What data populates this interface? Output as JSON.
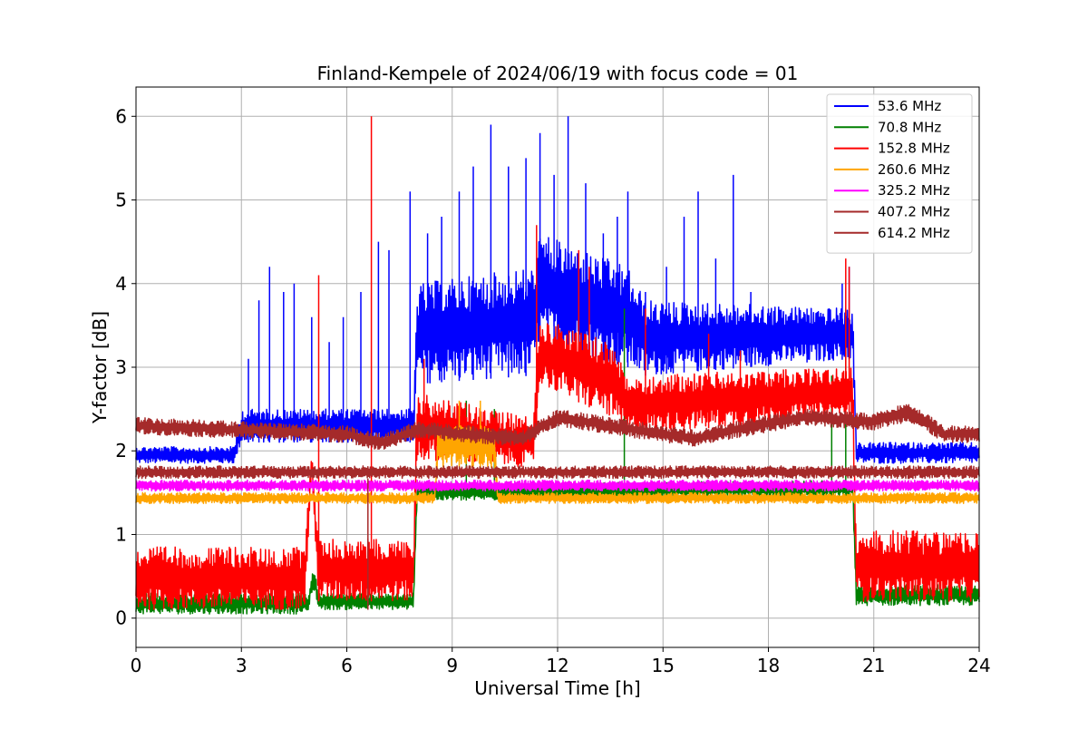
{
  "chart_data": {
    "type": "line",
    "title": "Finland-Kempele of 2024/06/19 with focus code = 01",
    "xlabel": "Universal Time [h]",
    "ylabel": "Y-factor [dB]",
    "xlim": [
      0,
      24
    ],
    "ylim": [
      -0.35,
      6.35
    ],
    "x_ticks": [
      0,
      3,
      6,
      9,
      12,
      15,
      18,
      21,
      24
    ],
    "x_tick_labels": [
      "0",
      "3",
      "6",
      "9",
      "12",
      "15",
      "18",
      "21",
      "24"
    ],
    "y_ticks": [
      0,
      1,
      2,
      3,
      4,
      5,
      6
    ],
    "y_tick_labels": [
      "0",
      "1",
      "2",
      "3",
      "4",
      "5",
      "6"
    ],
    "grid": true,
    "legend_position": "top-right",
    "series": [
      {
        "name": " 53.6 MHz",
        "color": "#0000ff",
        "profile_x": [
          0,
          2.8,
          3.0,
          7.9,
          8.0,
          11.3,
          11.5,
          14.0,
          14.5,
          20.4,
          20.5,
          24
        ],
        "band_low": [
          1.85,
          1.85,
          2.1,
          2.1,
          2.8,
          2.9,
          3.3,
          3.0,
          2.9,
          3.1,
          1.85,
          1.85
        ],
        "band_high": [
          2.05,
          2.05,
          2.5,
          2.5,
          4.0,
          4.2,
          4.6,
          4.2,
          3.8,
          3.7,
          2.1,
          2.1
        ],
        "peaks": [
          [
            3.2,
            3.1
          ],
          [
            3.5,
            3.8
          ],
          [
            3.8,
            4.2
          ],
          [
            4.2,
            3.9
          ],
          [
            4.5,
            4.0
          ],
          [
            5.0,
            3.6
          ],
          [
            5.5,
            3.3
          ],
          [
            5.9,
            3.6
          ],
          [
            6.4,
            3.9
          ],
          [
            6.9,
            4.5
          ],
          [
            7.2,
            4.4
          ],
          [
            7.8,
            5.1
          ],
          [
            8.3,
            4.6
          ],
          [
            8.7,
            4.8
          ],
          [
            9.2,
            5.1
          ],
          [
            9.6,
            5.4
          ],
          [
            10.1,
            5.9
          ],
          [
            10.6,
            5.4
          ],
          [
            11.1,
            5.5
          ],
          [
            11.5,
            5.8
          ],
          [
            11.9,
            5.3
          ],
          [
            12.3,
            6.0
          ],
          [
            12.8,
            5.2
          ],
          [
            13.3,
            4.6
          ],
          [
            13.7,
            4.8
          ],
          [
            14.0,
            5.1
          ],
          [
            14.5,
            3.9
          ],
          [
            15.1,
            4.2
          ],
          [
            15.6,
            4.8
          ],
          [
            16.0,
            5.1
          ],
          [
            16.5,
            4.3
          ],
          [
            17.0,
            5.3
          ],
          [
            17.5,
            3.9
          ],
          [
            18.0,
            3.7
          ],
          [
            19.1,
            3.7
          ],
          [
            20.1,
            4.0
          ],
          [
            20.3,
            4.2
          ]
        ]
      },
      {
        "name": " 70.8 MHz",
        "color": "#008000",
        "profile_x": [
          0,
          4.9,
          5.0,
          5.1,
          5.2,
          7.9,
          8.0,
          20.4,
          20.5,
          24
        ],
        "band_low": [
          0.05,
          0.05,
          0.3,
          0.3,
          0.1,
          0.1,
          1.4,
          1.45,
          0.15,
          0.15
        ],
        "band_high": [
          0.3,
          0.3,
          0.55,
          0.55,
          0.3,
          0.3,
          1.6,
          1.65,
          0.4,
          0.4
        ],
        "peaks": [
          [
            9.4,
            2.6
          ],
          [
            10.2,
            2.5
          ],
          [
            13.9,
            3.7
          ],
          [
            19.8,
            2.9
          ],
          [
            20.2,
            3.7
          ]
        ]
      },
      {
        "name": " 152.8 MHz",
        "color": "#ff0000",
        "profile_x": [
          0,
          4.8,
          5.0,
          5.2,
          7.9,
          8.0,
          11.3,
          11.5,
          13.5,
          14.0,
          20.4,
          20.5,
          24
        ],
        "band_low": [
          0.1,
          0.1,
          1.7,
          0.2,
          0.2,
          1.9,
          1.8,
          2.8,
          2.4,
          2.2,
          2.4,
          0.2,
          0.2
        ],
        "band_high": [
          0.85,
          0.85,
          2.0,
          0.95,
          0.95,
          2.7,
          2.4,
          3.6,
          3.3,
          2.9,
          3.0,
          1.05,
          1.05
        ],
        "peaks": [
          [
            5.2,
            4.1
          ],
          [
            6.7,
            6.0
          ],
          [
            8.2,
            3.1
          ],
          [
            11.4,
            4.7
          ],
          [
            12.6,
            4.4
          ],
          [
            12.9,
            4.2
          ],
          [
            14.5,
            3.7
          ],
          [
            16.3,
            3.4
          ],
          [
            17.2,
            3.2
          ],
          [
            20.2,
            4.3
          ],
          [
            20.3,
            4.2
          ]
        ]
      },
      {
        "name": " 260.6 MHz",
        "color": "#ffa500",
        "profile_x": [
          0,
          8.5,
          8.6,
          10.2,
          10.3,
          24
        ],
        "band_low": [
          1.37,
          1.37,
          1.8,
          1.8,
          1.37,
          1.37
        ],
        "band_high": [
          1.5,
          1.5,
          2.3,
          2.3,
          1.5,
          1.5
        ],
        "peaks": [
          [
            9.2,
            2.6
          ],
          [
            9.8,
            2.6
          ]
        ]
      },
      {
        "name": " 325.2 MHz",
        "color": "#ff00ff",
        "profile_x": [
          0,
          24
        ],
        "band_low": [
          1.52,
          1.52
        ],
        "band_high": [
          1.65,
          1.65
        ],
        "peaks": []
      },
      {
        "name": " 407.2 MHz",
        "color": "#a52a2a",
        "profile_x": [
          0,
          24
        ],
        "band_low": [
          1.67,
          1.67
        ],
        "band_high": [
          1.82,
          1.82
        ],
        "peaks": [
          [
            6.6,
            0.1
          ]
        ]
      },
      {
        "name": " 614.2 MHz",
        "color": "#a52a2a",
        "profile_x": [
          0,
          3.0,
          6.0,
          7.0,
          8.0,
          11.0,
          12.0,
          15.0,
          16.0,
          17.0,
          19.0,
          21.0,
          22.0,
          23.0,
          24
        ],
        "band_low": [
          2.2,
          2.15,
          2.1,
          2.0,
          2.15,
          2.05,
          2.3,
          2.1,
          2.05,
          2.15,
          2.3,
          2.25,
          2.35,
          2.1,
          2.1
        ],
        "band_high": [
          2.4,
          2.35,
          2.3,
          2.2,
          2.35,
          2.25,
          2.5,
          2.3,
          2.25,
          2.35,
          2.5,
          2.45,
          2.6,
          2.3,
          2.3
        ],
        "peaks": []
      }
    ]
  }
}
